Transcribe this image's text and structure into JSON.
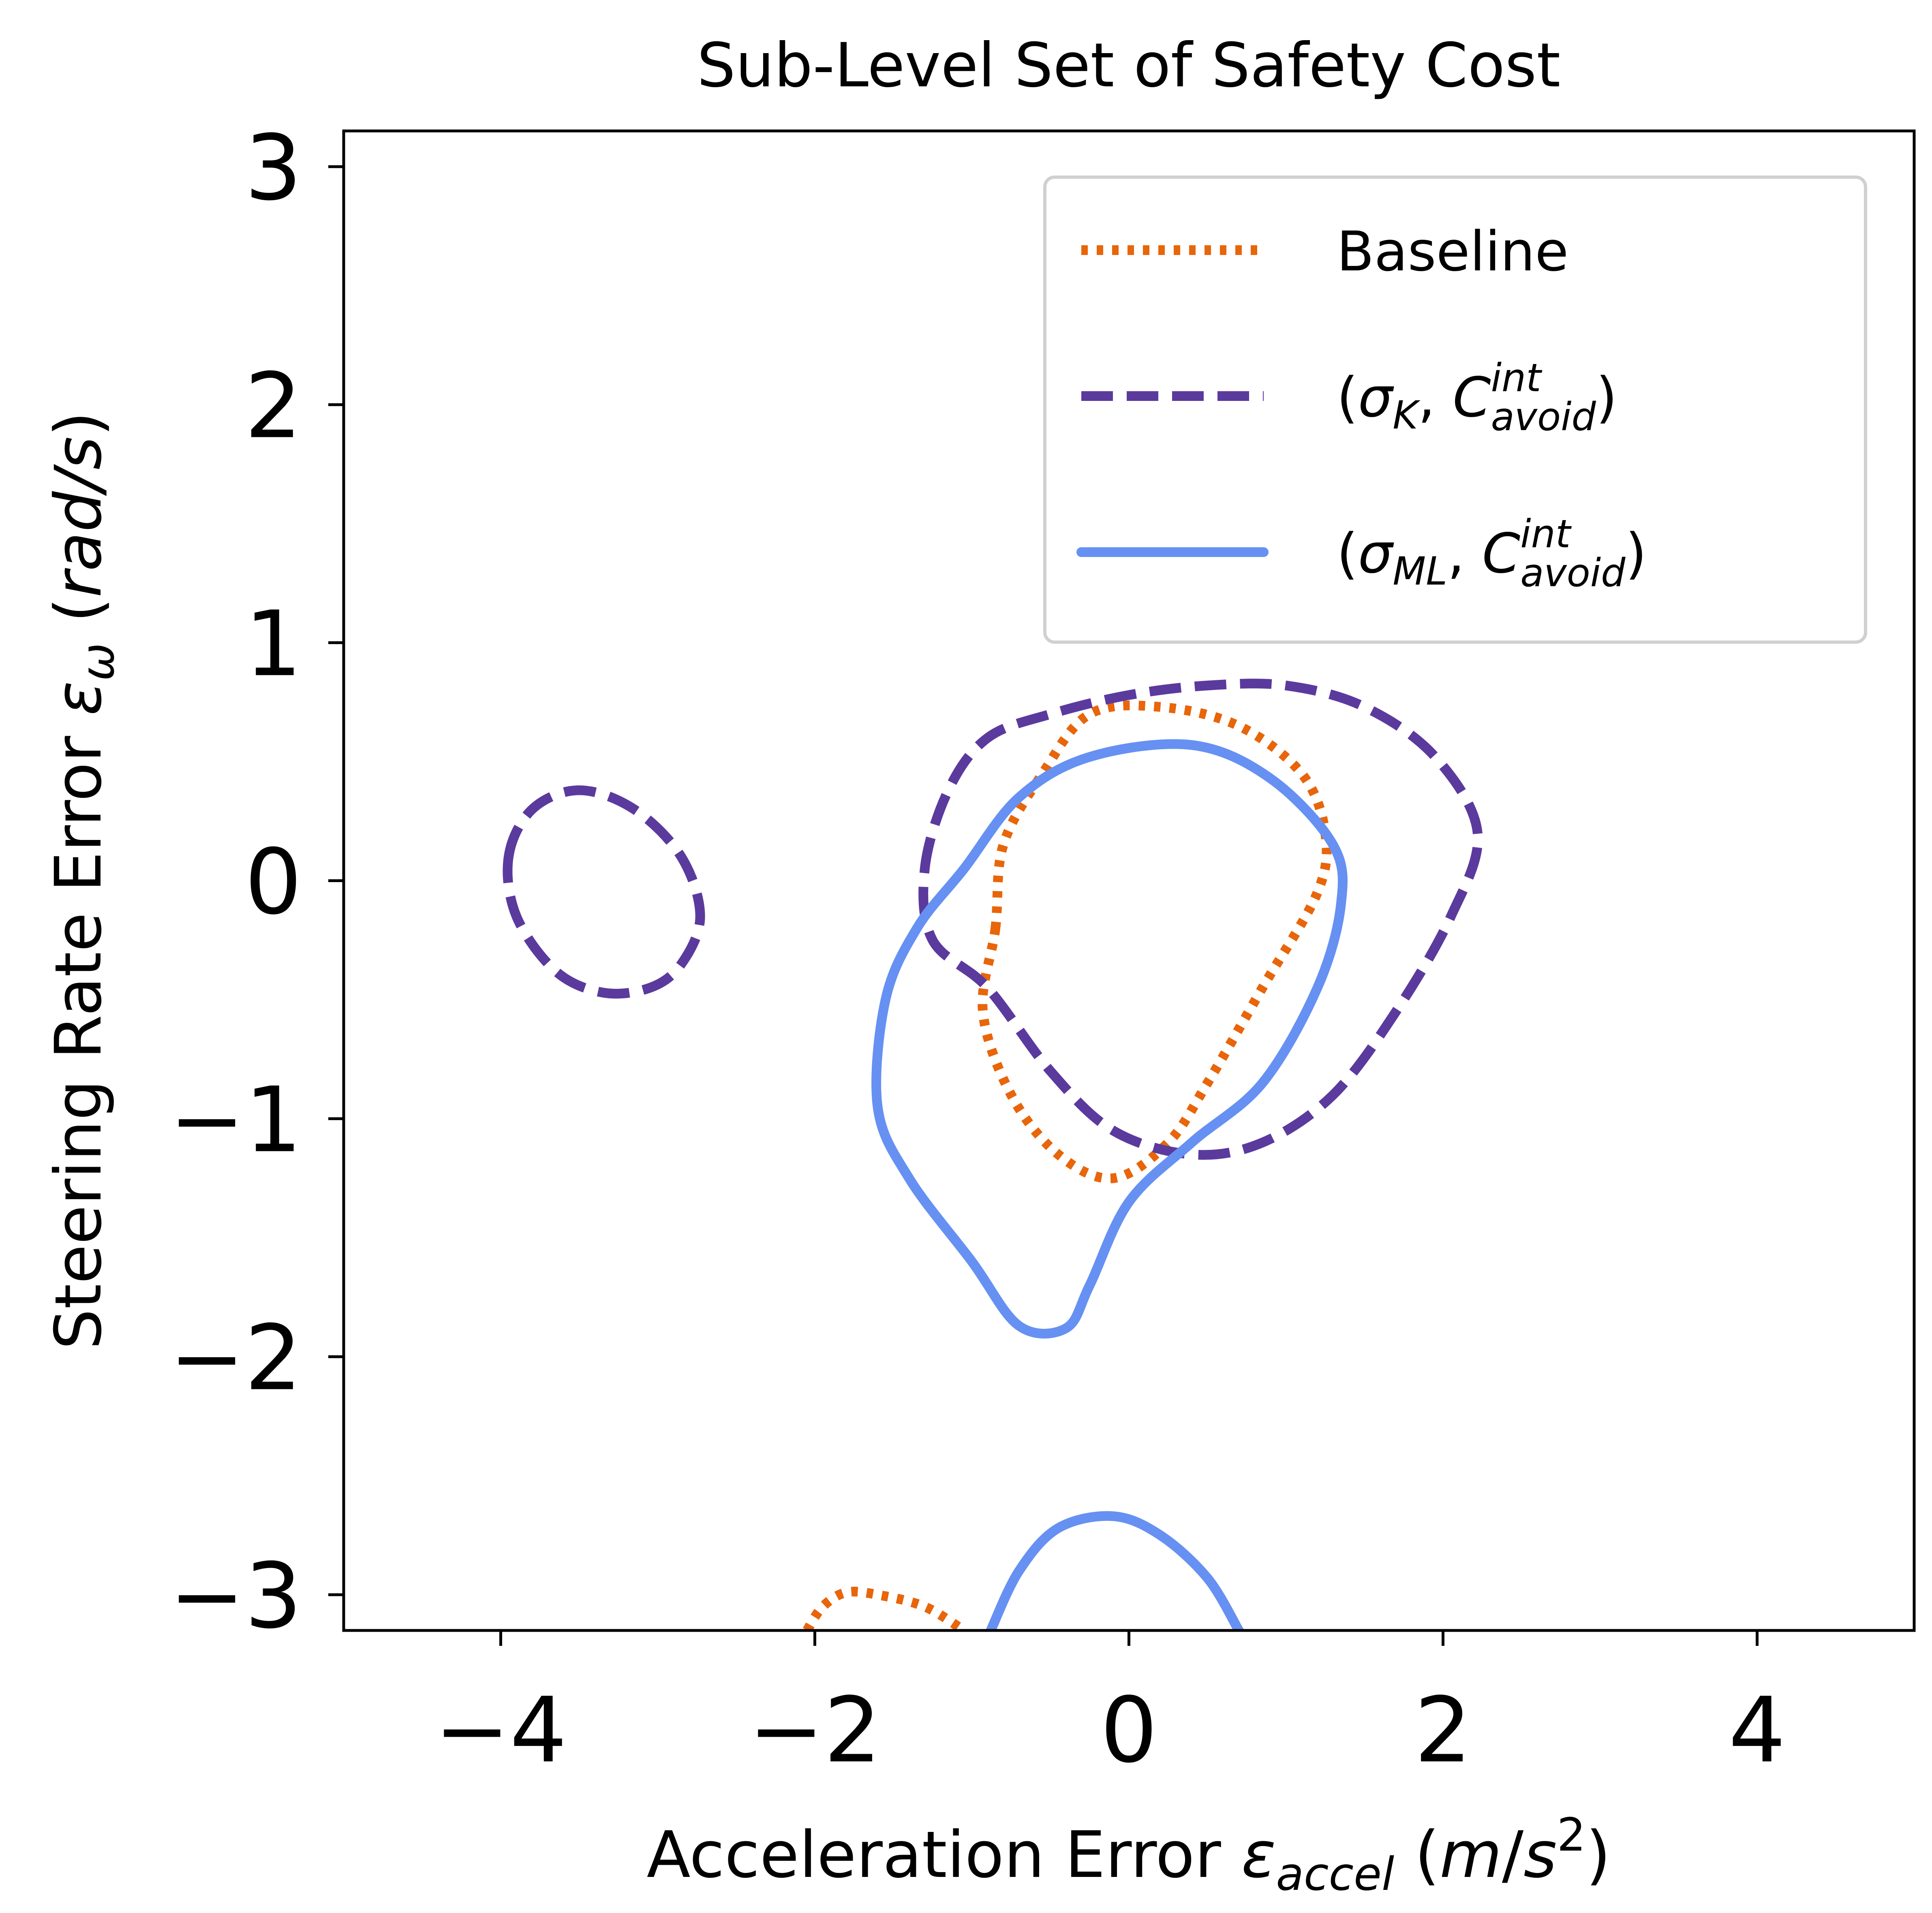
{
  "chart_data": {
    "type": "line",
    "title": "Sub-Level Set of Safety Cost",
    "xlabel": {
      "prefix": "Acceleration Error ",
      "symbol": "ε",
      "sub": "accel",
      "unit_open": " (",
      "unit_m": "m",
      "unit_slash": "/",
      "unit_s": "s",
      "unit_sup": "2",
      "unit_close": ")"
    },
    "ylabel": {
      "prefix": "Steering Rate Error ",
      "symbol": "ε",
      "sub": "ω",
      "unit_open": " (",
      "unit": "rad/s",
      "unit_close": ")"
    },
    "xlim": [
      -5,
      5
    ],
    "ylim": [
      -3.15,
      3.15
    ],
    "xticks": [
      -4,
      -2,
      0,
      2,
      4
    ],
    "xtick_labels": [
      "−4",
      "−2",
      "0",
      "2",
      "4"
    ],
    "yticks": [
      -3,
      -2,
      -1,
      0,
      1,
      2,
      3
    ],
    "ytick_labels": [
      "−3",
      "−2",
      "−1",
      "0",
      "1",
      "2",
      "3"
    ],
    "grid": false,
    "legend_position": "upper right",
    "series": [
      {
        "name": "Baseline",
        "legend": {
          "text": "Baseline"
        },
        "color": "#e8650a",
        "style": "dotted",
        "segments": [
          {
            "closed": true,
            "points": [
              [
                -0.85,
                -0.2
              ],
              [
                -0.93,
                -0.55
              ],
              [
                -0.75,
                -0.9
              ],
              [
                -0.45,
                -1.15
              ],
              [
                -0.1,
                -1.25
              ],
              [
                0.25,
                -1.1
              ],
              [
                0.5,
                -0.85
              ],
              [
                0.85,
                -0.45
              ],
              [
                1.2,
                -0.05
              ],
              [
                1.25,
                0.2
              ],
              [
                1.1,
                0.45
              ],
              [
                0.7,
                0.65
              ],
              [
                0.2,
                0.73
              ],
              [
                -0.25,
                0.7
              ],
              [
                -0.55,
                0.45
              ],
              [
                -0.8,
                0.15
              ]
            ]
          },
          {
            "closed": false,
            "points": [
              [
                -2.05,
                -3.15
              ],
              [
                -1.95,
                -3.05
              ],
              [
                -1.8,
                -2.99
              ],
              [
                -1.6,
                -3.0
              ],
              [
                -1.3,
                -3.05
              ],
              [
                -1.05,
                -3.15
              ]
            ]
          }
        ]
      },
      {
        "name": "(σK, Cavoid^int)",
        "legend": {
          "open": "(",
          "sigma": "σ",
          "sigma_sub": "K",
          "comma": ", ",
          "c": "C",
          "c_sup": "int",
          "c_sub": "avoid",
          "close": ")"
        },
        "color": "#5b3a9e",
        "style": "dashed",
        "segments": [
          {
            "closed": true,
            "points": [
              [
                -1.3,
                0.05
              ],
              [
                -1.15,
                0.38
              ],
              [
                -0.9,
                0.6
              ],
              [
                -0.5,
                0.7
              ],
              [
                0.0,
                0.78
              ],
              [
                0.5,
                0.82
              ],
              [
                1.0,
                0.82
              ],
              [
                1.5,
                0.73
              ],
              [
                1.95,
                0.52
              ],
              [
                2.22,
                0.2
              ],
              [
                2.05,
                -0.15
              ],
              [
                1.7,
                -0.55
              ],
              [
                1.3,
                -0.9
              ],
              [
                0.85,
                -1.1
              ],
              [
                0.4,
                -1.15
              ],
              [
                -0.1,
                -1.05
              ],
              [
                -0.5,
                -0.8
              ],
              [
                -0.9,
                -0.45
              ],
              [
                -1.25,
                -0.25
              ]
            ]
          },
          {
            "closed": true,
            "points": [
              [
                -3.95,
                0.1
              ],
              [
                -3.8,
                0.3
              ],
              [
                -3.5,
                0.38
              ],
              [
                -3.15,
                0.3
              ],
              [
                -2.85,
                0.1
              ],
              [
                -2.73,
                -0.15
              ],
              [
                -2.85,
                -0.35
              ],
              [
                -3.05,
                -0.45
              ],
              [
                -3.35,
                -0.47
              ],
              [
                -3.65,
                -0.38
              ],
              [
                -3.9,
                -0.15
              ]
            ]
          }
        ]
      },
      {
        "name": "(σML, Cavoid^int)",
        "legend": {
          "open": "(",
          "sigma": "σ",
          "sigma_sub": "ML",
          "comma": ", ",
          "c": "C",
          "c_sup": "int",
          "c_sub": "avoid",
          "close": ")"
        },
        "color": "#6691f2",
        "style": "solid",
        "segments": [
          {
            "closed": true,
            "points": [
              [
                -1.05,
                0.05
              ],
              [
                -0.7,
                0.35
              ],
              [
                -0.25,
                0.52
              ],
              [
                0.4,
                0.57
              ],
              [
                0.9,
                0.43
              ],
              [
                1.3,
                0.15
              ],
              [
                1.35,
                -0.1
              ],
              [
                1.2,
                -0.45
              ],
              [
                0.85,
                -0.85
              ],
              [
                0.4,
                -1.1
              ],
              [
                0.0,
                -1.35
              ],
              [
                -0.25,
                -1.7
              ],
              [
                -0.4,
                -1.88
              ],
              [
                -0.7,
                -1.87
              ],
              [
                -1.0,
                -1.6
              ],
              [
                -1.4,
                -1.25
              ],
              [
                -1.6,
                -0.95
              ],
              [
                -1.55,
                -0.5
              ],
              [
                -1.35,
                -0.2
              ]
            ]
          },
          {
            "closed": false,
            "points": [
              [
                -0.88,
                -3.15
              ],
              [
                -0.7,
                -2.9
              ],
              [
                -0.45,
                -2.72
              ],
              [
                -0.1,
                -2.67
              ],
              [
                0.2,
                -2.75
              ],
              [
                0.5,
                -2.93
              ],
              [
                0.7,
                -3.15
              ]
            ]
          }
        ]
      }
    ]
  }
}
